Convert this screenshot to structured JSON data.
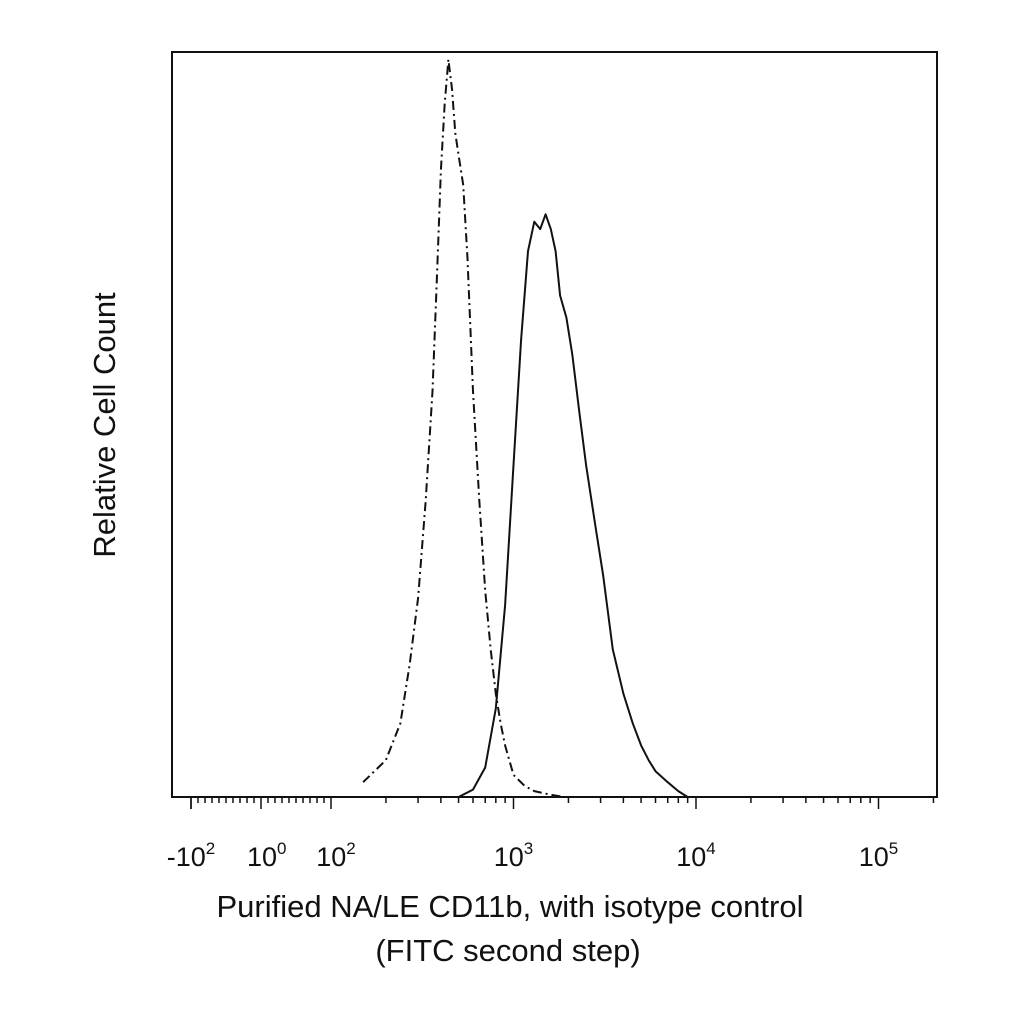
{
  "chart_data": {
    "type": "line",
    "title": "",
    "ylabel": "Relative Cell Count",
    "xlabel_lines": [
      "Purified NA/LE CD11b, with isotype control",
      "(FITC second step)"
    ],
    "x_scale": "biexponential",
    "xlim": [
      -200,
      250000
    ],
    "ylim": [
      0,
      1
    ],
    "x_tick_labels": [
      {
        "base": "-10",
        "exp": "2",
        "value": -100
      },
      {
        "base": "10",
        "exp": "0",
        "value": 1
      },
      {
        "base": "10",
        "exp": "2",
        "value": 100
      },
      {
        "base": "10",
        "exp": "3",
        "value": 1000
      },
      {
        "base": "10",
        "exp": "4",
        "value": 10000
      },
      {
        "base": "10",
        "exp": "5",
        "value": 100000
      }
    ],
    "colors": {
      "axis": "#111111",
      "series": "#111111"
    },
    "series": [
      {
        "style": "dash-dot",
        "x": [
          150,
          200,
          240,
          270,
          300,
          330,
          360,
          380,
          400,
          420,
          440,
          460,
          480,
          500,
          530,
          560,
          600,
          650,
          700,
          750,
          800,
          850,
          900,
          1000,
          1150,
          1300,
          1600,
          1900
        ],
        "y": [
          0.02,
          0.05,
          0.1,
          0.18,
          0.27,
          0.4,
          0.55,
          0.7,
          0.85,
          0.94,
          1.0,
          0.96,
          0.9,
          0.87,
          0.83,
          0.73,
          0.55,
          0.4,
          0.28,
          0.2,
          0.14,
          0.1,
          0.07,
          0.03,
          0.015,
          0.008,
          0.003,
          0.0
        ]
      },
      {
        "style": "solid",
        "x": [
          500,
          600,
          700,
          800,
          900,
          1000,
          1100,
          1200,
          1300,
          1400,
          1500,
          1600,
          1700,
          1800,
          1950,
          2100,
          2300,
          2500,
          2800,
          3100,
          3500,
          4000,
          4500,
          5000,
          5500,
          6000,
          7000,
          8000,
          9000
        ],
        "y": [
          0.0,
          0.01,
          0.04,
          0.12,
          0.26,
          0.45,
          0.62,
          0.74,
          0.78,
          0.77,
          0.79,
          0.77,
          0.74,
          0.68,
          0.65,
          0.6,
          0.52,
          0.45,
          0.37,
          0.3,
          0.2,
          0.14,
          0.1,
          0.07,
          0.05,
          0.035,
          0.02,
          0.008,
          0.0
        ]
      }
    ]
  }
}
